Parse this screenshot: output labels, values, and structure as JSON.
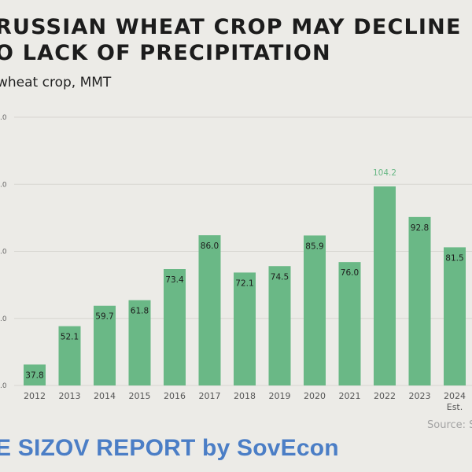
{
  "header": {
    "title_line1": "RUSSIAN WHEAT CROP MAY DECLINE",
    "title_line2": "O LACK OF PRECIPITATION",
    "subtitle": "wheat crop, MMT"
  },
  "source": "Source: S",
  "footer": "E SIZOV REPORT by SovEcon",
  "colors": {
    "bar": "#6ab886",
    "highlight_label": "#6ab886",
    "footer": "#4b7ec6",
    "grid": "#d7d6d1"
  },
  "chart_data": {
    "type": "bar",
    "title": "RUSSIAN WHEAT CROP MAY DECLINE O LACK OF PRECIPITATION",
    "ylabel": "wheat crop, MMT",
    "categories": [
      "2012",
      "2013",
      "2014",
      "2015",
      "2016",
      "2017",
      "2018",
      "2019",
      "2020",
      "2021",
      "2022",
      "2023",
      "2024"
    ],
    "category_sublabels": [
      "",
      "",
      "",
      "",
      "",
      "",
      "",
      "",
      "",
      "",
      "",
      "",
      "Est."
    ],
    "values": [
      37.8,
      52.1,
      59.7,
      61.8,
      73.4,
      86.0,
      72.1,
      74.5,
      85.9,
      76.0,
      104.2,
      92.8,
      81.5
    ],
    "value_labels": [
      "37.8",
      "52.1",
      "59.7",
      "61.8",
      "73.4",
      "86.0",
      "72.1",
      "74.5",
      "85.9",
      "76.0",
      "104.2",
      "92.8",
      "81.5"
    ],
    "highlight_index": 10,
    "ylim": [
      30,
      130
    ],
    "yticks": [
      30,
      55,
      80,
      105,
      130
    ],
    "ytick_labels": [
      ".0",
      ".0",
      ".0",
      ".0",
      ".0"
    ],
    "grid": true,
    "legend": "none"
  }
}
